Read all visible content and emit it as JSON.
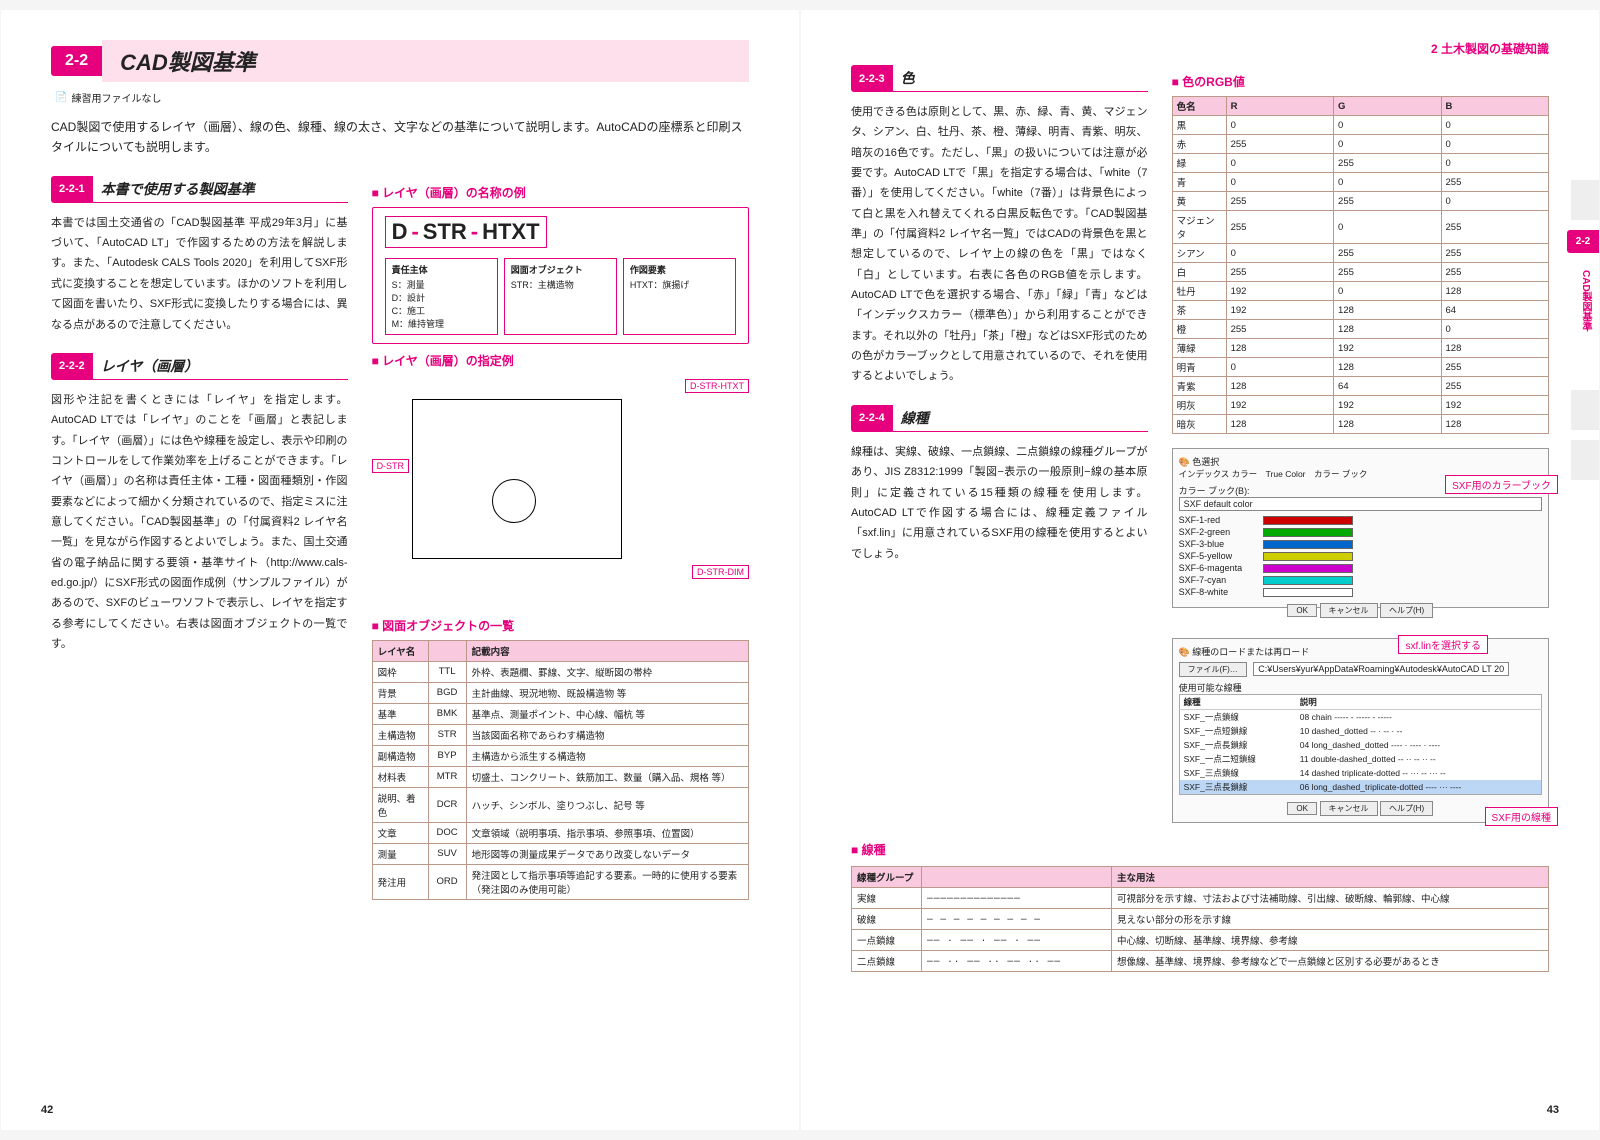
{
  "chapter_header": "2 土木製図の基礎知識",
  "left": {
    "section_num": "2-2",
    "section_title": "CAD製図基準",
    "practice": "練習用ファイルなし",
    "intro": "CAD製図で使用するレイヤ（画層）、線の色、線種、線の太さ、文字などの基準について説明します。AutoCADの座標系と印刷スタイルについても説明します。",
    "sub1_num": "2-2-1",
    "sub1_title": "本書で使用する製図基準",
    "body1": "本書では国土交通省の「CAD製図基準 平成29年3月」に基づいて、「AutoCAD LT」で作図するための方法を解説します。また、「Autodesk CALS Tools 2020」を利用してSXF形式に変換することを想定しています。ほかのソフトを利用して図面を書いたり、SXF形式に変換したりする場合には、異なる点があるので注意してください。",
    "sub2_num": "2-2-2",
    "sub2_title": "レイヤ（画層）",
    "body2": "図形や注記を書くときには「レイヤ」を指定します。AutoCAD LTでは「レイヤ」のことを「画層」と表記します。「レイヤ（画層）」には色や線種を設定し、表示や印刷のコントロールをして作業効率を上げることができます。「レイヤ（画層）」の名称は責任主体・工種・図面種類別・作図要素などによって細かく分類されているので、指定ミスに注意してください。「CAD製図基準」の「付属資料2 レイヤ名一覧」を見ながら作図するとよいでしょう。また、国土交通省の電子納品に関する要領・基準サイト（http://www.cals-ed.go.jp/）にSXF形式の図面作成例（サンプルファイル）があるので、SXFのビューワソフトで表示し、レイヤを指定する参考にしてください。右表は図面オブジェクトの一覧です。",
    "h_naming": "レイヤ（画層）の名称の例",
    "layer_code": {
      "a": "D",
      "b": "STR",
      "c": "HTXT"
    },
    "legend": {
      "l1_t": "責任主体",
      "l1_b": "S：測量\nD：設計\nC：施工\nM：維持管理",
      "l2_t": "図面オブジェクト",
      "l2_b": "STR：主構造物",
      "l3_t": "作図要素",
      "l3_b": "HTXT：旗揚げ"
    },
    "h_example": "レイヤ（画層）の指定例",
    "callouts": {
      "c1": "D-STR-HTXT",
      "c2": "D-STR",
      "c3": "D-STR-DIM"
    },
    "h_obj": "図面オブジェクトの一覧",
    "obj_cols": [
      "レイヤ名",
      "",
      "記載内容"
    ],
    "obj_rows": [
      [
        "図枠",
        "TTL",
        "外枠、表題欄、罫線、文字、縦断図の帯枠"
      ],
      [
        "背景",
        "BGD",
        "主計曲線、現況地物、既設構造物 等"
      ],
      [
        "基準",
        "BMK",
        "基準点、測量ポイント、中心線、幅杭 等"
      ],
      [
        "主構造物",
        "STR",
        "当該図面名称であらわす構造物"
      ],
      [
        "副構造物",
        "BYP",
        "主構造から派生する構造物"
      ],
      [
        "材料表",
        "MTR",
        "切盛土、コンクリート、鉄筋加工、数量（購入品、規格 等）"
      ],
      [
        "説明、着色",
        "DCR",
        "ハッチ、シンボル、塗りつぶし、記号 等"
      ],
      [
        "文章",
        "DOC",
        "文章領域（説明事項、指示事項、参照事項、位置図）"
      ],
      [
        "測量",
        "SUV",
        "地形図等の測量成果データであり改変しないデータ"
      ],
      [
        "発注用",
        "ORD",
        "発注図として指示事項等追記する要素。一時的に使用する要素（発注図のみ使用可能）"
      ]
    ],
    "page_num": "42"
  },
  "right": {
    "sub3_num": "2-2-3",
    "sub3_title": "色",
    "body3": "使用できる色は原則として、黒、赤、緑、青、黄、マジェンタ、シアン、白、牡丹、茶、橙、薄緑、明青、青紫、明灰、暗灰の16色です。ただし、「黒」の扱いについては注意が必要です。AutoCAD LTで「黒」を指定する場合は、「white（7番）」を使用してください。「white（7番）」は背景色によって白と黒を入れ替えてくれる白黒反転色です。「CAD製図基準」の「付属資料2 レイヤ名一覧」ではCADの背景色を黒と想定しているので、レイヤ上の線の色を「黒」ではなく「白」としています。右表に各色のRGB値を示します。AutoCAD LTで色を選択する場合、「赤」「緑」「青」などは「インデックスカラー（標準色）」から利用することができます。それ以外の「牡丹」「茶」「橙」などはSXF形式のための色がカラーブックとして用意されているので、それを使用するとよいでしょう。",
    "h_rgb": "色のRGB値",
    "rgb_cols": [
      "色名",
      "R",
      "G",
      "B"
    ],
    "rgb_rows": [
      [
        "黒",
        "0",
        "0",
        "0"
      ],
      [
        "赤",
        "255",
        "0",
        "0"
      ],
      [
        "緑",
        "0",
        "255",
        "0"
      ],
      [
        "青",
        "0",
        "0",
        "255"
      ],
      [
        "黄",
        "255",
        "255",
        "0"
      ],
      [
        "マジェンタ",
        "255",
        "0",
        "255"
      ],
      [
        "シアン",
        "0",
        "255",
        "255"
      ],
      [
        "白",
        "255",
        "255",
        "255"
      ],
      [
        "牡丹",
        "192",
        "0",
        "128"
      ],
      [
        "茶",
        "192",
        "128",
        "64"
      ],
      [
        "橙",
        "255",
        "128",
        "0"
      ],
      [
        "薄緑",
        "128",
        "192",
        "128"
      ],
      [
        "明青",
        "0",
        "128",
        "255"
      ],
      [
        "青紫",
        "128",
        "64",
        "255"
      ],
      [
        "明灰",
        "192",
        "192",
        "192"
      ],
      [
        "暗灰",
        "128",
        "128",
        "128"
      ]
    ],
    "dialog1": {
      "title": "色選択",
      "tabs": "インデックス カラー　True Color　カラー ブック",
      "label": "カラー ブック(B):",
      "field": "SXF default color",
      "rows": [
        "SXF-1-red",
        "SXF-2-green",
        "SXF-3-blue",
        "SXF-5-yellow",
        "SXF-6-magenta",
        "SXF-7-cyan",
        "SXF-8-white"
      ],
      "btns": [
        "OK",
        "キャンセル",
        "ヘルプ(H)"
      ],
      "arrow": "SXF用のカラーブック"
    },
    "sub4_num": "2-2-4",
    "sub4_title": "線種",
    "body4": "線種は、実線、破線、一点鎖線、二点鎖線の線種グループがあり、JIS Z8312:1999「製図−表示の一般原則−線の基本原則」に定義されている15種類の線種を使用します。AutoCAD LTで作図する場合には、線種定義ファイル「sxf.lin」に用意されているSXF用の線種を使用するとよいでしょう。",
    "dialog2": {
      "title": "線種のロードまたは再ロード",
      "file_btn": "ファイル(F)…",
      "file_path": "C:¥Users¥yur¥AppData¥Roaming¥Autodesk¥AutoCAD LT 20",
      "header": "使用可能な線種",
      "cols": [
        "線種",
        "説明"
      ],
      "rows": [
        [
          "SXF_一点鎖線",
          "08 chain ----- - ----- - -----"
        ],
        [
          "SXF_一点短鎖線",
          "10 dashed_dotted -- · -- · --"
        ],
        [
          "SXF_一点長鎖線",
          "04 long_dashed_dotted ---- · ---- · ----"
        ],
        [
          "SXF_一点二短鎖線",
          "11 double-dashed_dotted -- ·· -- ·· --"
        ],
        [
          "SXF_三点鎖線",
          "14 dashed triplicate-dotted -- ··· -- ··· --"
        ],
        [
          "SXF_三点長鎖線",
          "06 long_dashed_triplicate-dotted ---- ··· ----"
        ]
      ],
      "btns": [
        "OK",
        "キャンセル",
        "ヘルプ(H)"
      ],
      "arrow1": "sxf.linを選択する",
      "arrow2": "SXF用の線種"
    },
    "h_line": "線種",
    "line_cols": [
      "線種グループ",
      "",
      "主な用法"
    ],
    "line_rows": [
      [
        "実線",
        "──────────────",
        "可視部分を示す線、寸法および寸法補助線、引出線、破断線、輪郭線、中心線"
      ],
      [
        "破線",
        "─ ─ ─ ─ ─ ─ ─ ─ ─",
        "見えない部分の形を示す線"
      ],
      [
        "一点鎖線",
        "── · ── · ── · ──",
        "中心線、切断線、基準線、境界線、参考線"
      ],
      [
        "二点鎖線",
        "── ·· ── ·· ── ·· ──",
        "想像線、基準線、境界線、参考線などで一点鎖線と区別する必要があるとき"
      ]
    ],
    "page_num": "43",
    "tab": "2-2",
    "tab_vert": "CAD製図基準"
  }
}
